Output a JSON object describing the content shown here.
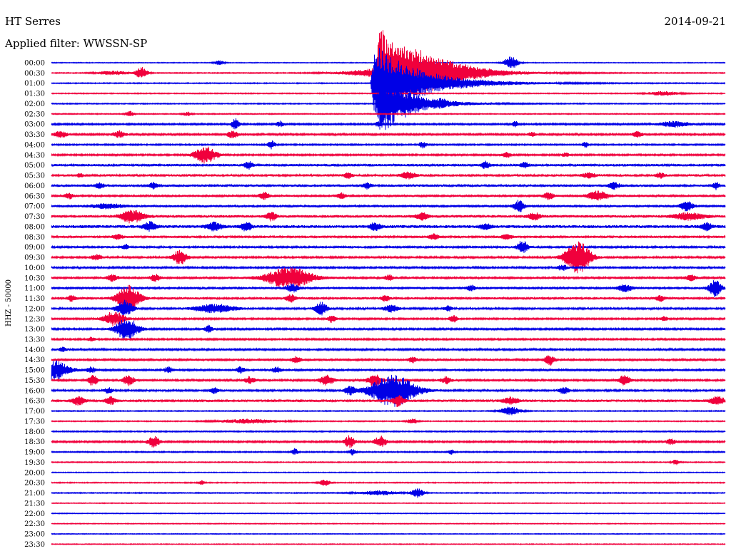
{
  "header": {
    "station": "HT Serres",
    "date": "2014-09-21",
    "filter": "Applied filter: WWSSN-SP"
  },
  "chart_data": {
    "type": "line",
    "title": "HT Serres",
    "ylabel": "HHZ - 50000",
    "row_labels": [
      "00:00",
      "00:30",
      "01:00",
      "01:30",
      "02:00",
      "02:30",
      "03:00",
      "03:30",
      "04:00",
      "04:30",
      "05:00",
      "05:30",
      "06:00",
      "06:30",
      "07:00",
      "07:30",
      "08:00",
      "08:30",
      "09:00",
      "09:30",
      "10:00",
      "10:30",
      "11:00",
      "11:30",
      "12:00",
      "12:30",
      "13:00",
      "13:30",
      "14:00",
      "14:30",
      "15:00",
      "15:30",
      "16:00",
      "16:30",
      "17:00",
      "17:30",
      "18:00",
      "18:30",
      "19:00",
      "19:30",
      "20:00",
      "20:30",
      "21:00",
      "21:30",
      "22:00",
      "22:30",
      "23:00",
      "23:30"
    ],
    "trace_colors": [
      "#0000e6",
      "#f0003c"
    ],
    "background_noise": [
      0.4,
      0.5,
      0.5,
      0.5,
      0.5,
      0.5,
      0.8,
      0.9,
      0.7,
      0.8,
      1.3,
      1.2,
      1.3,
      1.2,
      1.3,
      1.4,
      1.6,
      1.2,
      1.1,
      1.0,
      1.0,
      1.1,
      1.2,
      1.2,
      1.0,
      0.8,
      0.9,
      0.8,
      1.0,
      1.1,
      1.1,
      1.0,
      1.0,
      1.3,
      0.5,
      0.5,
      0.6,
      0.8,
      0.6,
      0.5,
      0.4,
      0.5,
      0.5,
      0.4,
      0.4,
      0.4,
      0.4,
      0.4
    ],
    "events": [
      {
        "row": 0,
        "x": 307,
        "amp": 3,
        "dur": 10
      },
      {
        "row": 0,
        "x": 716,
        "amp": 9,
        "dur": 14
      },
      {
        "row": 1,
        "x": 158,
        "amp": 3,
        "dur": 30
      },
      {
        "row": 1,
        "x": 198,
        "amp": 8,
        "dur": 12
      },
      {
        "row": 1,
        "x": 528,
        "amp": 60,
        "dur": 55,
        "shape": "quake"
      },
      {
        "row": 1,
        "x": 585,
        "amp": 12,
        "dur": 110
      },
      {
        "row": 2,
        "x": 522,
        "amp": 55,
        "dur": 60,
        "shape": "quake"
      },
      {
        "row": 3,
        "x": 930,
        "amp": 3,
        "dur": 30
      },
      {
        "row": 4,
        "x": 530,
        "amp": 45,
        "dur": 40,
        "shape": "quake"
      },
      {
        "row": 4,
        "x": 620,
        "amp": 3,
        "dur": 8
      },
      {
        "row": 5,
        "x": 182,
        "amp": 4,
        "dur": 8
      },
      {
        "row": 5,
        "x": 262,
        "amp": 3,
        "dur": 8
      },
      {
        "row": 6,
        "x": 330,
        "amp": 8,
        "dur": 8
      },
      {
        "row": 6,
        "x": 392,
        "amp": 4,
        "dur": 8
      },
      {
        "row": 6,
        "x": 530,
        "amp": 4,
        "dur": 6
      },
      {
        "row": 6,
        "x": 722,
        "amp": 4,
        "dur": 6
      },
      {
        "row": 6,
        "x": 945,
        "amp": 4,
        "dur": 30
      },
      {
        "row": 7,
        "x": 85,
        "amp": 5,
        "dur": 12
      },
      {
        "row": 7,
        "x": 167,
        "amp": 5,
        "dur": 12
      },
      {
        "row": 7,
        "x": 326,
        "amp": 6,
        "dur": 10
      },
      {
        "row": 7,
        "x": 745,
        "amp": 3,
        "dur": 8
      },
      {
        "row": 7,
        "x": 893,
        "amp": 4,
        "dur": 10
      },
      {
        "row": 8,
        "x": 380,
        "amp": 6,
        "dur": 8
      },
      {
        "row": 8,
        "x": 592,
        "amp": 5,
        "dur": 8
      },
      {
        "row": 8,
        "x": 820,
        "amp": 4,
        "dur": 6
      },
      {
        "row": 9,
        "x": 288,
        "amp": 12,
        "dur": 22
      },
      {
        "row": 9,
        "x": 710,
        "amp": 5,
        "dur": 8
      },
      {
        "row": 9,
        "x": 792,
        "amp": 3,
        "dur": 8
      },
      {
        "row": 10,
        "x": 348,
        "amp": 5,
        "dur": 8
      },
      {
        "row": 10,
        "x": 680,
        "amp": 5,
        "dur": 8
      },
      {
        "row": 10,
        "x": 735,
        "amp": 4,
        "dur": 8
      },
      {
        "row": 11,
        "x": 112,
        "amp": 3,
        "dur": 6
      },
      {
        "row": 11,
        "x": 488,
        "amp": 4,
        "dur": 8
      },
      {
        "row": 11,
        "x": 572,
        "amp": 5,
        "dur": 14
      },
      {
        "row": 11,
        "x": 825,
        "amp": 4,
        "dur": 12
      },
      {
        "row": 11,
        "x": 925,
        "amp": 4,
        "dur": 8
      },
      {
        "row": 12,
        "x": 140,
        "amp": 4,
        "dur": 8
      },
      {
        "row": 12,
        "x": 215,
        "amp": 4,
        "dur": 8
      },
      {
        "row": 12,
        "x": 514,
        "amp": 4,
        "dur": 8
      },
      {
        "row": 12,
        "x": 860,
        "amp": 5,
        "dur": 10
      },
      {
        "row": 12,
        "x": 1003,
        "amp": 5,
        "dur": 6
      },
      {
        "row": 13,
        "x": 97,
        "amp": 4,
        "dur": 8
      },
      {
        "row": 13,
        "x": 370,
        "amp": 5,
        "dur": 10
      },
      {
        "row": 13,
        "x": 478,
        "amp": 4,
        "dur": 8
      },
      {
        "row": 13,
        "x": 768,
        "amp": 5,
        "dur": 10
      },
      {
        "row": 13,
        "x": 838,
        "amp": 7,
        "dur": 20
      },
      {
        "row": 14,
        "x": 150,
        "amp": 3,
        "dur": 30
      },
      {
        "row": 14,
        "x": 727,
        "amp": 8,
        "dur": 10
      },
      {
        "row": 14,
        "x": 962,
        "amp": 7,
        "dur": 12
      },
      {
        "row": 15,
        "x": 185,
        "amp": 9,
        "dur": 22
      },
      {
        "row": 15,
        "x": 380,
        "amp": 6,
        "dur": 10
      },
      {
        "row": 15,
        "x": 592,
        "amp": 5,
        "dur": 12
      },
      {
        "row": 15,
        "x": 748,
        "amp": 5,
        "dur": 12
      },
      {
        "row": 15,
        "x": 965,
        "amp": 5,
        "dur": 30
      },
      {
        "row": 16,
        "x": 210,
        "amp": 6,
        "dur": 12
      },
      {
        "row": 16,
        "x": 300,
        "amp": 6,
        "dur": 14
      },
      {
        "row": 16,
        "x": 345,
        "amp": 6,
        "dur": 10
      },
      {
        "row": 16,
        "x": 525,
        "amp": 5,
        "dur": 10
      },
      {
        "row": 16,
        "x": 680,
        "amp": 4,
        "dur": 10
      },
      {
        "row": 16,
        "x": 990,
        "amp": 5,
        "dur": 10
      },
      {
        "row": 17,
        "x": 165,
        "amp": 4,
        "dur": 10
      },
      {
        "row": 17,
        "x": 608,
        "amp": 4,
        "dur": 10
      },
      {
        "row": 17,
        "x": 710,
        "amp": 4,
        "dur": 10
      },
      {
        "row": 18,
        "x": 176,
        "amp": 4,
        "dur": 6
      },
      {
        "row": 18,
        "x": 732,
        "amp": 9,
        "dur": 10
      },
      {
        "row": 19,
        "x": 135,
        "amp": 4,
        "dur": 10
      },
      {
        "row": 19,
        "x": 252,
        "amp": 10,
        "dur": 14
      },
      {
        "row": 19,
        "x": 810,
        "amp": 22,
        "dur": 25
      },
      {
        "row": 20,
        "x": 788,
        "amp": 4,
        "dur": 10
      },
      {
        "row": 21,
        "x": 158,
        "amp": 5,
        "dur": 10
      },
      {
        "row": 21,
        "x": 218,
        "amp": 5,
        "dur": 10
      },
      {
        "row": 21,
        "x": 405,
        "amp": 15,
        "dur": 45
      },
      {
        "row": 21,
        "x": 545,
        "amp": 4,
        "dur": 8
      },
      {
        "row": 21,
        "x": 968,
        "amp": 4,
        "dur": 10
      },
      {
        "row": 22,
        "x": 410,
        "amp": 6,
        "dur": 12
      },
      {
        "row": 22,
        "x": 660,
        "amp": 4,
        "dur": 8
      },
      {
        "row": 22,
        "x": 875,
        "amp": 5,
        "dur": 15
      },
      {
        "row": 22,
        "x": 1002,
        "amp": 12,
        "dur": 12
      },
      {
        "row": 23,
        "x": 100,
        "amp": 4,
        "dur": 8
      },
      {
        "row": 23,
        "x": 180,
        "amp": 18,
        "dur": 22
      },
      {
        "row": 23,
        "x": 408,
        "amp": 5,
        "dur": 10
      },
      {
        "row": 23,
        "x": 540,
        "amp": 4,
        "dur": 8
      },
      {
        "row": 23,
        "x": 925,
        "amp": 4,
        "dur": 8
      },
      {
        "row": 24,
        "x": 175,
        "amp": 12,
        "dur": 16
      },
      {
        "row": 24,
        "x": 300,
        "amp": 6,
        "dur": 40
      },
      {
        "row": 24,
        "x": 450,
        "amp": 9,
        "dur": 12
      },
      {
        "row": 24,
        "x": 548,
        "amp": 5,
        "dur": 14
      },
      {
        "row": 24,
        "x": 628,
        "amp": 4,
        "dur": 8
      },
      {
        "row": 25,
        "x": 160,
        "amp": 10,
        "dur": 22
      },
      {
        "row": 25,
        "x": 465,
        "amp": 5,
        "dur": 8
      },
      {
        "row": 25,
        "x": 635,
        "amp": 5,
        "dur": 8
      },
      {
        "row": 25,
        "x": 930,
        "amp": 3,
        "dur": 8
      },
      {
        "row": 26,
        "x": 178,
        "amp": 16,
        "dur": 22
      },
      {
        "row": 26,
        "x": 292,
        "amp": 5,
        "dur": 8
      },
      {
        "row": 27,
        "x": 128,
        "amp": 3,
        "dur": 8
      },
      {
        "row": 28,
        "x": 88,
        "amp": 3,
        "dur": 8
      },
      {
        "row": 29,
        "x": 415,
        "amp": 4,
        "dur": 10
      },
      {
        "row": 29,
        "x": 578,
        "amp": 4,
        "dur": 8
      },
      {
        "row": 29,
        "x": 770,
        "amp": 7,
        "dur": 10
      },
      {
        "row": 30,
        "x": 73,
        "amp": 14,
        "dur": 32
      },
      {
        "row": 30,
        "x": 128,
        "amp": 4,
        "dur": 8
      },
      {
        "row": 30,
        "x": 236,
        "amp": 4,
        "dur": 8
      },
      {
        "row": 30,
        "x": 337,
        "amp": 4,
        "dur": 8
      },
      {
        "row": 30,
        "x": 388,
        "amp": 4,
        "dur": 10
      },
      {
        "row": 31,
        "x": 130,
        "amp": 7,
        "dur": 10
      },
      {
        "row": 31,
        "x": 180,
        "amp": 8,
        "dur": 10
      },
      {
        "row": 31,
        "x": 350,
        "amp": 5,
        "dur": 10
      },
      {
        "row": 31,
        "x": 458,
        "amp": 7,
        "dur": 14
      },
      {
        "row": 31,
        "x": 525,
        "amp": 9,
        "dur": 14
      },
      {
        "row": 31,
        "x": 625,
        "amp": 5,
        "dur": 10
      },
      {
        "row": 31,
        "x": 875,
        "amp": 8,
        "dur": 10
      },
      {
        "row": 32,
        "x": 152,
        "amp": 4,
        "dur": 8
      },
      {
        "row": 32,
        "x": 300,
        "amp": 4,
        "dur": 8
      },
      {
        "row": 32,
        "x": 490,
        "amp": 6,
        "dur": 10
      },
      {
        "row": 32,
        "x": 551,
        "amp": 22,
        "dur": 45
      },
      {
        "row": 32,
        "x": 790,
        "amp": 5,
        "dur": 10
      },
      {
        "row": 33,
        "x": 110,
        "amp": 6,
        "dur": 12
      },
      {
        "row": 33,
        "x": 155,
        "amp": 5,
        "dur": 10
      },
      {
        "row": 33,
        "x": 558,
        "amp": 8,
        "dur": 10
      },
      {
        "row": 33,
        "x": 715,
        "amp": 5,
        "dur": 14
      },
      {
        "row": 33,
        "x": 1005,
        "amp": 6,
        "dur": 14
      },
      {
        "row": 34,
        "x": 715,
        "amp": 6,
        "dur": 20
      },
      {
        "row": 35,
        "x": 350,
        "amp": 3,
        "dur": 60
      },
      {
        "row": 35,
        "x": 578,
        "amp": 4,
        "dur": 10
      },
      {
        "row": 37,
        "x": 215,
        "amp": 8,
        "dur": 12
      },
      {
        "row": 37,
        "x": 490,
        "amp": 9,
        "dur": 10
      },
      {
        "row": 37,
        "x": 533,
        "amp": 8,
        "dur": 12
      },
      {
        "row": 37,
        "x": 940,
        "amp": 4,
        "dur": 10
      },
      {
        "row": 38,
        "x": 413,
        "amp": 5,
        "dur": 6
      },
      {
        "row": 38,
        "x": 494,
        "amp": 5,
        "dur": 6
      },
      {
        "row": 38,
        "x": 632,
        "amp": 4,
        "dur": 6
      },
      {
        "row": 39,
        "x": 947,
        "amp": 4,
        "dur": 8
      },
      {
        "row": 41,
        "x": 283,
        "amp": 3,
        "dur": 6
      },
      {
        "row": 41,
        "x": 455,
        "amp": 5,
        "dur": 10
      },
      {
        "row": 42,
        "x": 530,
        "amp": 3,
        "dur": 40
      },
      {
        "row": 42,
        "x": 585,
        "amp": 7,
        "dur": 12
      }
    ]
  }
}
